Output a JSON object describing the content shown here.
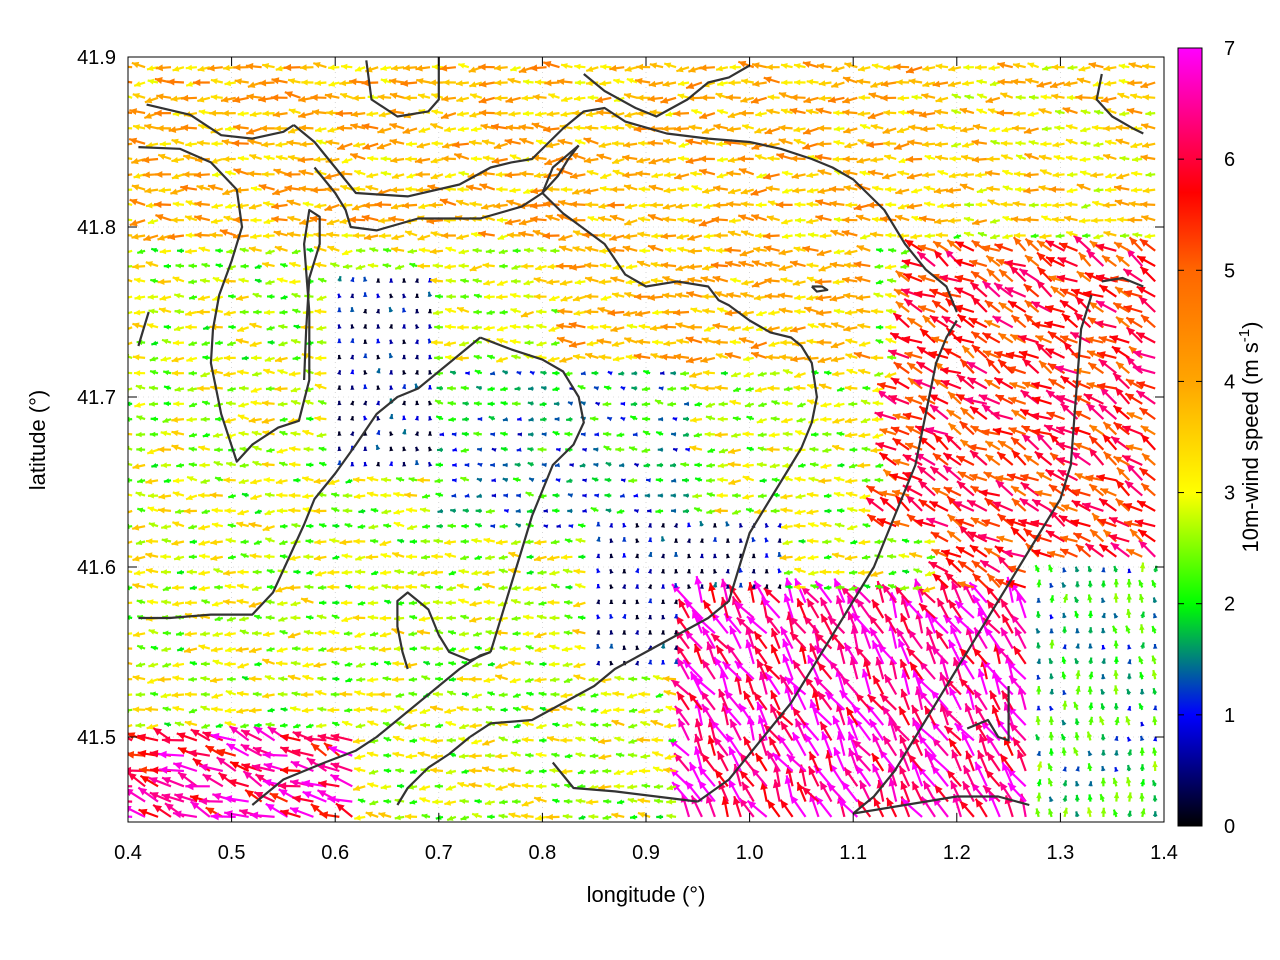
{
  "chart_data": {
    "type": "vector-field",
    "xlabel": "longitude (°)",
    "ylabel": "latitude (°)",
    "colorbar_label_main": "10m-wind speed (m s",
    "colorbar_label_sup": "-1",
    "colorbar_label_close": ")",
    "xlim": [
      0.4,
      1.4
    ],
    "ylim": [
      41.45,
      41.9
    ],
    "x_ticks": [
      0.4,
      0.5,
      0.6,
      0.7,
      0.8,
      0.9,
      1.0,
      1.1,
      1.2,
      1.3,
      1.4
    ],
    "x_tick_labels": [
      "0.4",
      "0.5",
      "0.6",
      "0.7",
      "0.8",
      "0.9",
      "1.0",
      "1.1",
      "1.2",
      "1.3",
      "1.4"
    ],
    "y_ticks": [
      41.5,
      41.6,
      41.7,
      41.8,
      41.9
    ],
    "y_tick_labels": [
      "41.5",
      "41.6",
      "41.7",
      "41.8",
      "41.9"
    ],
    "colorbar_range": [
      0,
      7
    ],
    "colorbar_ticks": [
      0,
      1,
      2,
      3,
      4,
      5,
      6,
      7
    ],
    "colorbar_tick_labels": [
      "0",
      "1",
      "2",
      "3",
      "4",
      "5",
      "6",
      "7"
    ],
    "colormap_stops": [
      {
        "value": 0,
        "color": "#000000"
      },
      {
        "value": 1,
        "color": "#0000ff"
      },
      {
        "value": 1.5,
        "color": "#007f7f"
      },
      {
        "value": 2,
        "color": "#00ff00"
      },
      {
        "value": 3,
        "color": "#ffff00"
      },
      {
        "value": 4,
        "color": "#ffa500"
      },
      {
        "value": 5,
        "color": "#ff6600"
      },
      {
        "value": 5.7,
        "color": "#ff0000"
      },
      {
        "value": 7,
        "color": "#ff00ff"
      }
    ],
    "grid": true,
    "grid_x_spacing": 0.0125,
    "grid_y_spacing": 0.009,
    "vector_scale_deg_per_ms": 0.0035,
    "wind_zones": [
      {
        "region": "north",
        "speed": 3.8,
        "direction_deg": 180
      },
      {
        "region": "northeast-top",
        "speed": 3.5,
        "direction_deg": 178
      },
      {
        "region": "west",
        "speed": 2.8,
        "direction_deg": 180
      },
      {
        "region": "central-valley",
        "speed": 1.6,
        "direction_deg": 175
      },
      {
        "region": "calm-basin",
        "speed": 0.6,
        "direction_deg": 90
      },
      {
        "region": "east-ridge",
        "speed": 5.5,
        "direction_deg": 150
      },
      {
        "region": "southeast",
        "speed": 6.6,
        "direction_deg": 120
      },
      {
        "region": "southwest-corner",
        "speed": 6.2,
        "direction_deg": 160
      },
      {
        "region": "far-southeast",
        "speed": 1.8,
        "direction_deg": 95
      }
    ],
    "contours": [
      [
        [
          0.418,
          41.872
        ],
        [
          0.46,
          41.866
        ],
        [
          0.49,
          41.854
        ],
        [
          0.52,
          41.852
        ],
        [
          0.55,
          41.856
        ],
        [
          0.56,
          41.86
        ]
      ],
      [
        [
          0.41,
          41.847
        ],
        [
          0.45,
          41.846
        ],
        [
          0.48,
          41.838
        ],
        [
          0.505,
          41.822
        ],
        [
          0.51,
          41.8
        ],
        [
          0.5,
          41.78
        ],
        [
          0.488,
          41.76
        ],
        [
          0.482,
          41.74
        ],
        [
          0.48,
          41.72
        ],
        [
          0.49,
          41.69
        ],
        [
          0.505,
          41.662
        ],
        [
          0.52,
          41.672
        ],
        [
          0.545,
          41.682
        ],
        [
          0.565,
          41.686
        ],
        [
          0.575,
          41.71
        ],
        [
          0.575,
          41.75
        ],
        [
          0.57,
          41.79
        ],
        [
          0.575,
          41.81
        ],
        [
          0.585,
          41.806
        ],
        [
          0.585,
          41.79
        ],
        [
          0.575,
          41.77
        ],
        [
          0.572,
          41.74
        ],
        [
          0.57,
          41.71
        ]
      ],
      [
        [
          0.56,
          41.86
        ],
        [
          0.58,
          41.85
        ],
        [
          0.6,
          41.835
        ],
        [
          0.62,
          41.82
        ],
        [
          0.67,
          41.818
        ],
        [
          0.72,
          41.825
        ],
        [
          0.75,
          41.835
        ],
        [
          0.77,
          41.838
        ],
        [
          0.79,
          41.84
        ],
        [
          0.82,
          41.858
        ],
        [
          0.84,
          41.868
        ],
        [
          0.86,
          41.87
        ],
        [
          0.88,
          41.862
        ],
        [
          0.92,
          41.855
        ],
        [
          0.96,
          41.852
        ],
        [
          1.0,
          41.85
        ],
        [
          1.03,
          41.846
        ],
        [
          1.06,
          41.84
        ],
        [
          1.08,
          41.835
        ],
        [
          1.1,
          41.828
        ],
        [
          1.13,
          41.81
        ],
        [
          1.15,
          41.79
        ],
        [
          1.17,
          41.775
        ],
        [
          1.19,
          41.765
        ],
        [
          1.2,
          41.75
        ]
      ],
      [
        [
          0.63,
          41.898
        ],
        [
          0.635,
          41.875
        ],
        [
          0.66,
          41.865
        ],
        [
          0.69,
          41.868
        ],
        [
          0.7,
          41.875
        ],
        [
          0.7,
          41.9
        ]
      ],
      [
        [
          0.58,
          41.835
        ],
        [
          0.6,
          41.82
        ],
        [
          0.61,
          41.81
        ],
        [
          0.615,
          41.8
        ],
        [
          0.64,
          41.798
        ],
        [
          0.68,
          41.805
        ],
        [
          0.74,
          41.805
        ],
        [
          0.78,
          41.812
        ],
        [
          0.8,
          41.82
        ],
        [
          0.815,
          41.83
        ],
        [
          0.825,
          41.84
        ],
        [
          0.835,
          41.848
        ]
      ],
      [
        [
          0.835,
          41.848
        ],
        [
          0.81,
          41.835
        ],
        [
          0.8,
          41.82
        ],
        [
          0.82,
          41.808
        ],
        [
          0.86,
          41.79
        ],
        [
          0.88,
          41.772
        ],
        [
          0.9,
          41.765
        ],
        [
          0.93,
          41.768
        ],
        [
          0.96,
          41.765
        ],
        [
          0.97,
          41.757
        ],
        [
          0.98,
          41.754
        ],
        [
          1.0,
          41.745
        ],
        [
          1.02,
          41.738
        ],
        [
          1.04,
          41.735
        ],
        [
          1.05,
          41.73
        ],
        [
          1.06,
          41.72
        ],
        [
          1.065,
          41.7
        ],
        [
          1.06,
          41.685
        ],
        [
          1.05,
          41.67
        ],
        [
          1.035,
          41.655
        ],
        [
          1.02,
          41.64
        ],
        [
          1.0,
          41.62
        ],
        [
          0.99,
          41.6
        ],
        [
          0.98,
          41.58
        ],
        [
          0.96,
          41.57
        ],
        [
          0.93,
          41.56
        ],
        [
          0.9,
          41.55
        ],
        [
          0.87,
          41.54
        ],
        [
          0.85,
          41.53
        ],
        [
          0.82,
          41.52
        ],
        [
          0.79,
          41.51
        ],
        [
          0.75,
          41.508
        ],
        [
          0.73,
          41.5
        ]
      ],
      [
        [
          0.74,
          41.735
        ],
        [
          0.77,
          41.728
        ],
        [
          0.8,
          41.722
        ],
        [
          0.82,
          41.715
        ],
        [
          0.835,
          41.7
        ],
        [
          0.84,
          41.685
        ],
        [
          0.83,
          41.672
        ],
        [
          0.81,
          41.66
        ],
        [
          0.8,
          41.645
        ],
        [
          0.79,
          41.63
        ],
        [
          0.78,
          41.61
        ],
        [
          0.77,
          41.59
        ],
        [
          0.76,
          41.57
        ],
        [
          0.75,
          41.55
        ]
      ],
      [
        [
          0.74,
          41.735
        ],
        [
          0.72,
          41.725
        ],
        [
          0.7,
          41.715
        ],
        [
          0.68,
          41.705
        ],
        [
          0.66,
          41.7
        ],
        [
          0.64,
          41.69
        ],
        [
          0.62,
          41.672
        ],
        [
          0.6,
          41.655
        ],
        [
          0.58,
          41.64
        ],
        [
          0.57,
          41.625
        ],
        [
          0.555,
          41.605
        ],
        [
          0.54,
          41.585
        ],
        [
          0.52,
          41.572
        ],
        [
          0.48,
          41.572
        ],
        [
          0.44,
          41.57
        ],
        [
          0.41,
          41.57
        ]
      ],
      [
        [
          0.75,
          41.55
        ],
        [
          0.73,
          41.545
        ],
        [
          0.71,
          41.55
        ],
        [
          0.7,
          41.56
        ],
        [
          0.69,
          41.575
        ],
        [
          0.68,
          41.58
        ],
        [
          0.67,
          41.585
        ],
        [
          0.66,
          41.58
        ],
        [
          0.66,
          41.565
        ],
        [
          0.665,
          41.55
        ],
        [
          0.67,
          41.54
        ]
      ],
      [
        [
          0.73,
          41.5
        ],
        [
          0.71,
          41.49
        ],
        [
          0.69,
          41.482
        ],
        [
          0.67,
          41.47
        ],
        [
          0.66,
          41.46
        ]
      ],
      [
        [
          0.81,
          41.485
        ],
        [
          0.83,
          41.47
        ],
        [
          0.87,
          41.468
        ],
        [
          0.91,
          41.465
        ],
        [
          0.95,
          41.462
        ]
      ],
      [
        [
          0.95,
          41.462
        ],
        [
          0.98,
          41.475
        ],
        [
          1.0,
          41.49
        ],
        [
          1.02,
          41.505
        ],
        [
          1.04,
          41.52
        ],
        [
          1.06,
          41.54
        ],
        [
          1.08,
          41.56
        ],
        [
          1.1,
          41.58
        ],
        [
          1.12,
          41.6
        ],
        [
          1.14,
          41.63
        ],
        [
          1.16,
          41.66
        ],
        [
          1.17,
          41.69
        ],
        [
          1.18,
          41.72
        ],
        [
          1.19,
          41.735
        ],
        [
          1.2,
          41.745
        ]
      ],
      [
        [
          1.06,
          41.765
        ],
        [
          1.07,
          41.765
        ],
        [
          1.075,
          41.763
        ],
        [
          1.065,
          41.762
        ],
        [
          1.06,
          41.765
        ]
      ],
      [
        [
          1.33,
          41.76
        ],
        [
          1.32,
          41.74
        ],
        [
          1.315,
          41.7
        ],
        [
          1.31,
          41.66
        ],
        [
          1.3,
          41.64
        ],
        [
          1.28,
          41.62
        ],
        [
          1.26,
          41.6
        ],
        [
          1.24,
          41.58
        ],
        [
          1.22,
          41.56
        ],
        [
          1.2,
          41.54
        ],
        [
          1.18,
          41.52
        ],
        [
          1.16,
          41.5
        ],
        [
          1.14,
          41.48
        ],
        [
          1.12,
          41.465
        ],
        [
          1.1,
          41.455
        ]
      ],
      [
        [
          1.34,
          41.768
        ],
        [
          1.36,
          41.77
        ],
        [
          1.38,
          41.765
        ]
      ],
      [
        [
          1.34,
          41.89
        ],
        [
          1.335,
          41.875
        ],
        [
          1.35,
          41.865
        ],
        [
          1.37,
          41.858
        ],
        [
          1.38,
          41.855
        ]
      ],
      [
        [
          1.21,
          41.505
        ],
        [
          1.23,
          41.51
        ],
        [
          1.24,
          41.5
        ],
        [
          1.25,
          41.498
        ],
        [
          1.25,
          41.52
        ],
        [
          1.25,
          41.53
        ]
      ],
      [
        [
          1.1,
          41.455
        ],
        [
          1.15,
          41.46
        ],
        [
          1.2,
          41.465
        ],
        [
          1.24,
          41.465
        ],
        [
          1.27,
          41.46
        ]
      ],
      [
        [
          0.52,
          41.46
        ],
        [
          0.55,
          41.475
        ],
        [
          0.59,
          41.485
        ],
        [
          0.62,
          41.492
        ],
        [
          0.64,
          41.5
        ],
        [
          0.66,
          41.51
        ],
        [
          0.68,
          41.52
        ],
        [
          0.7,
          41.53
        ],
        [
          0.72,
          41.54
        ],
        [
          0.74,
          41.548
        ],
        [
          0.75,
          41.55
        ]
      ],
      [
        [
          0.84,
          41.89
        ],
        [
          0.86,
          41.88
        ],
        [
          0.89,
          41.87
        ],
        [
          0.91,
          41.865
        ],
        [
          0.94,
          41.875
        ],
        [
          0.96,
          41.885
        ],
        [
          0.98,
          41.888
        ],
        [
          1.0,
          41.895
        ]
      ],
      [
        [
          0.41,
          41.73
        ],
        [
          0.415,
          41.74
        ],
        [
          0.42,
          41.75
        ]
      ]
    ]
  }
}
